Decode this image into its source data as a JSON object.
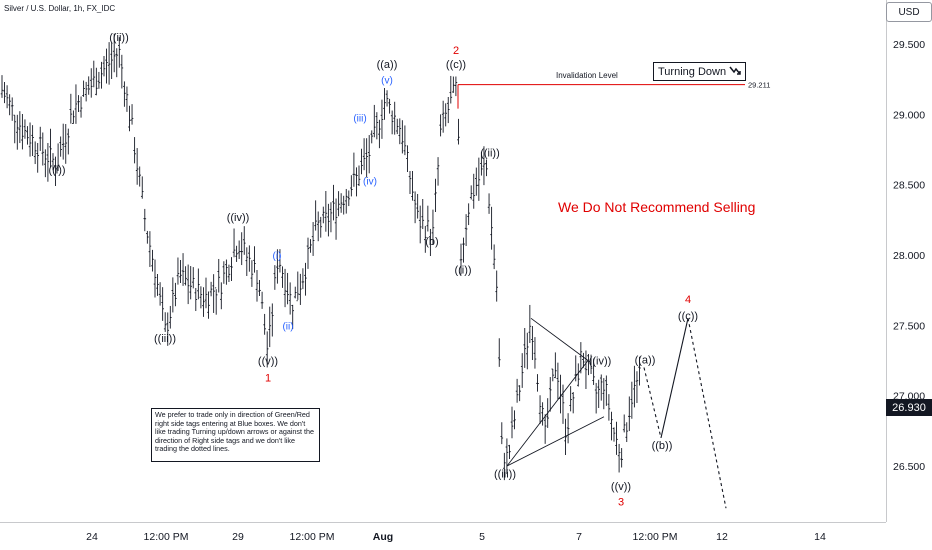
{
  "header": {
    "symbol_title": "Silver / U.S. Dollar, 1h, FX_IDC",
    "currency_button": "USD"
  },
  "annotations": {
    "invalidation_label": "Invalidation Level",
    "invalidation_price": "29.211",
    "turning_label": "Turning Down",
    "recommend": "We Do Not Recommend Selling",
    "note": "We prefer to trade only in direction of Green/Red right side tags entering at Blue boxes.  We don't like trading Turning up/down arrows or against the direction of Right side tags and we don't like trading the dotted lines.",
    "last_price": "26.930"
  },
  "colors": {
    "wave_red": "#e00000",
    "wave_blue": "#2962ff",
    "price_black": "#131722"
  },
  "chart_data": {
    "type": "ohlc",
    "title": "Silver / U.S. Dollar, 1h, FX_IDC",
    "xlabel": "",
    "ylabel": "USD",
    "ylim": [
      26.16,
      30.0
    ],
    "y_ticks": [
      "29.500",
      "29.000",
      "28.500",
      "28.000",
      "27.500",
      "27.000",
      "26.500"
    ],
    "x_ticks": [
      "24",
      "12:00 PM",
      "29",
      "12:00 PM",
      "Aug",
      "5",
      "7",
      "12:00 PM",
      "12",
      "14"
    ],
    "price_path": [
      [
        0,
        29.2
      ],
      [
        22,
        28.9
      ],
      [
        48,
        28.7
      ],
      [
        57,
        28.65
      ],
      [
        74,
        29.05
      ],
      [
        96,
        29.25
      ],
      [
        119,
        29.45
      ],
      [
        132,
        28.9
      ],
      [
        146,
        28.2
      ],
      [
        155,
        27.9
      ],
      [
        165,
        27.45
      ],
      [
        180,
        27.85
      ],
      [
        205,
        27.7
      ],
      [
        221,
        27.8
      ],
      [
        238,
        28.1
      ],
      [
        258,
        27.85
      ],
      [
        268,
        27.3
      ],
      [
        278,
        28.0
      ],
      [
        292,
        27.65
      ],
      [
        303,
        27.85
      ],
      [
        317,
        28.2
      ],
      [
        327,
        28.25
      ],
      [
        357,
        28.55
      ],
      [
        371,
        28.75
      ],
      [
        385,
        29.1
      ],
      [
        401,
        28.9
      ],
      [
        418,
        28.25
      ],
      [
        433,
        28.15
      ],
      [
        441,
        28.9
      ],
      [
        457,
        29.2
      ],
      [
        461,
        28.0
      ],
      [
        470,
        28.4
      ],
      [
        486,
        28.65
      ],
      [
        497,
        27.75
      ],
      [
        502,
        26.6
      ],
      [
        508,
        26.55
      ],
      [
        531,
        27.55
      ],
      [
        545,
        26.7
      ],
      [
        556,
        27.25
      ],
      [
        566,
        26.75
      ],
      [
        582,
        27.3
      ],
      [
        597,
        27.0
      ],
      [
        604,
        27.1
      ],
      [
        615,
        26.7
      ],
      [
        621,
        26.6
      ],
      [
        632,
        27.0
      ],
      [
        644,
        27.2
      ]
    ],
    "projection_path": [
      [
        644,
        27.2
      ],
      [
        661,
        26.7
      ],
      [
        688,
        27.55
      ],
      [
        726,
        26.2
      ]
    ],
    "triangle": [
      [
        507,
        26.5
      ],
      [
        531,
        27.55
      ],
      [
        588,
        27.25
      ],
      [
        604,
        26.85
      ]
    ],
    "invalidation_line": {
      "x_start": 458,
      "x_end": 745,
      "y": 29.211
    },
    "labels": [
      {
        "text": "((ii))",
        "x": 119,
        "y": 29.52,
        "color": "black"
      },
      {
        "text": "((i))",
        "x": 57,
        "y": 28.58,
        "color": "black"
      },
      {
        "text": "((iii))",
        "x": 165,
        "y": 27.38,
        "color": "black"
      },
      {
        "text": "((iv))",
        "x": 238,
        "y": 28.24,
        "color": "black"
      },
      {
        "text": "(i)",
        "x": 277,
        "y": 27.97,
        "color": "blue"
      },
      {
        "text": "(ii)",
        "x": 288,
        "y": 27.47,
        "color": "blue"
      },
      {
        "text": "((v))",
        "x": 268,
        "y": 27.22,
        "color": "black"
      },
      {
        "text": "1",
        "x": 268,
        "y": 27.1,
        "color": "red"
      },
      {
        "text": "(iii)",
        "x": 360,
        "y": 28.95,
        "color": "blue"
      },
      {
        "text": "(iv)",
        "x": 370,
        "y": 28.5,
        "color": "blue"
      },
      {
        "text": "(v)",
        "x": 387,
        "y": 29.22,
        "color": "blue"
      },
      {
        "text": "((a))",
        "x": 387,
        "y": 29.33,
        "color": "black"
      },
      {
        "text": "(b)",
        "x": 432,
        "y": 28.07,
        "color": "black"
      },
      {
        "text": "2",
        "x": 456,
        "y": 29.43,
        "color": "red"
      },
      {
        "text": "((c))",
        "x": 456,
        "y": 29.33,
        "color": "black"
      },
      {
        "text": "((ii))",
        "x": 490,
        "y": 28.7,
        "color": "black"
      },
      {
        "text": "((i))",
        "x": 463,
        "y": 27.87,
        "color": "black"
      },
      {
        "text": "((iii))",
        "x": 505,
        "y": 26.42,
        "color": "black"
      },
      {
        "text": "((iv))",
        "x": 600,
        "y": 27.22,
        "color": "black"
      },
      {
        "text": "((v))",
        "x": 621,
        "y": 26.33,
        "color": "black"
      },
      {
        "text": "3",
        "x": 621,
        "y": 26.22,
        "color": "red"
      },
      {
        "text": "((a))",
        "x": 645,
        "y": 27.23,
        "color": "black"
      },
      {
        "text": "((b))",
        "x": 662,
        "y": 26.62,
        "color": "black"
      },
      {
        "text": "4",
        "x": 688,
        "y": 27.66,
        "color": "red"
      },
      {
        "text": "((c))",
        "x": 688,
        "y": 27.54,
        "color": "black"
      }
    ]
  }
}
